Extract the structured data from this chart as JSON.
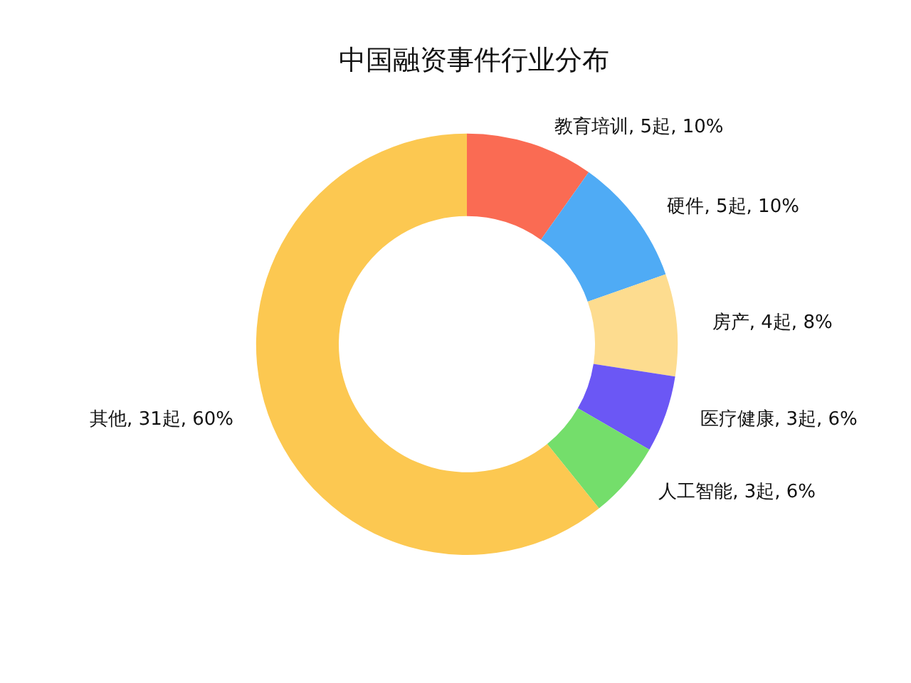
{
  "chart_data": {
    "type": "donut",
    "title": "中国融资事件行业分布",
    "categories": [
      "教育培训",
      "硬件",
      "房产",
      "医疗健康",
      "人工智能",
      "其他"
    ],
    "values": [
      5,
      5,
      4,
      3,
      3,
      31
    ],
    "value_labels": [
      "5起, 10%",
      "5起, 10%",
      "4起, 8%",
      "3起, 6%",
      "3起, 6%",
      "31起, 60%"
    ],
    "colors": [
      "#fa6b53",
      "#4fabf5",
      "#fddc8f",
      "#6b57f5",
      "#74de6b",
      "#fcc851"
    ],
    "legend": false
  }
}
